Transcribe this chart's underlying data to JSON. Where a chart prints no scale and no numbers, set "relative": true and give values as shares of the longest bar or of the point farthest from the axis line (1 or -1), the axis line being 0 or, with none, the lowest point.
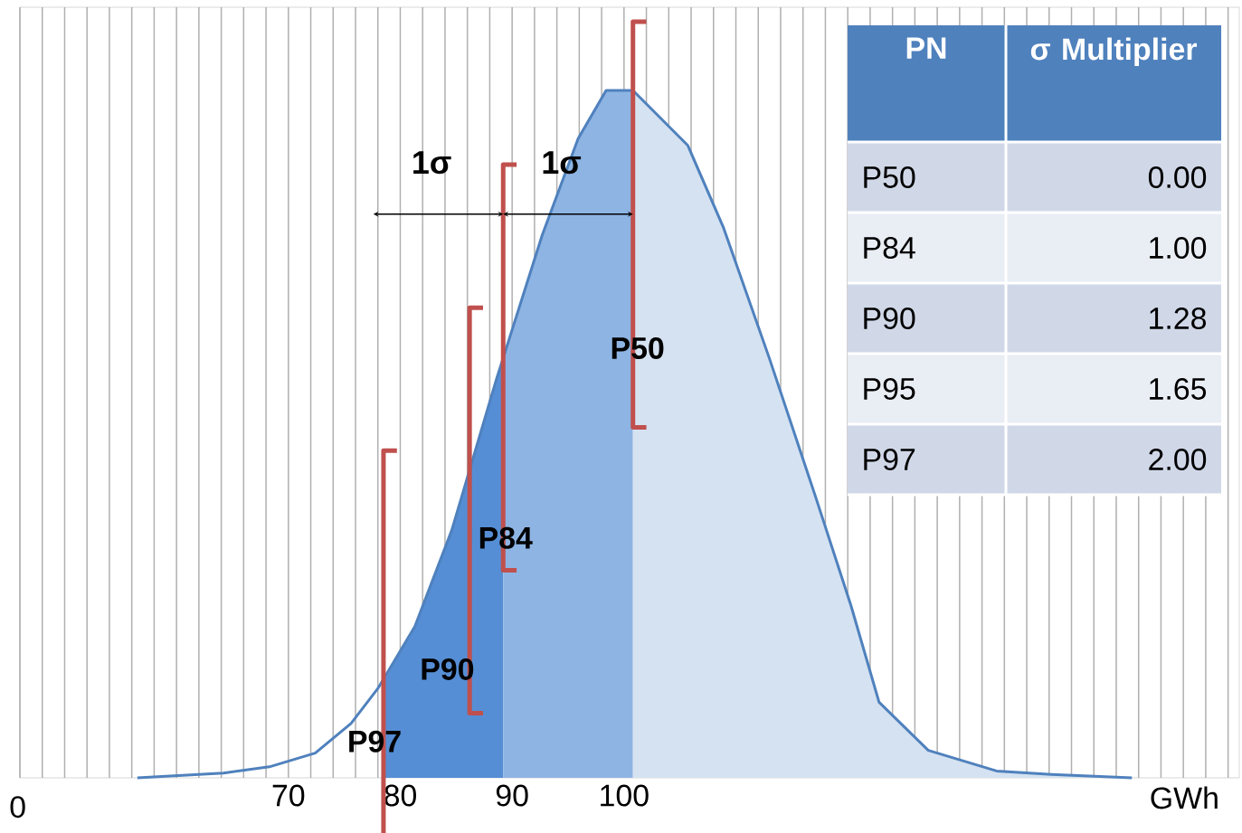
{
  "chart_data": [
    {
      "type": "area",
      "relative": true,
      "xlabel": "GWh",
      "xlim": [
        46,
        155
      ],
      "grid": "x",
      "marker": "none",
      "xticks": [
        {
          "value": 46,
          "label": null
        },
        {
          "value": 48,
          "label": null
        },
        {
          "value": 50,
          "label": null
        },
        {
          "value": 52,
          "label": null
        },
        {
          "value": 54,
          "label": null
        },
        {
          "value": 56,
          "label": null
        },
        {
          "value": 58,
          "label": null
        },
        {
          "value": 60,
          "label": null
        },
        {
          "value": 62,
          "label": null
        },
        {
          "value": 64,
          "label": null
        },
        {
          "value": 66,
          "label": null
        },
        {
          "value": 68,
          "label": null
        },
        70,
        {
          "value": 72,
          "label": null
        },
        {
          "value": 74,
          "label": null
        },
        {
          "value": 76,
          "label": null
        },
        {
          "value": 78,
          "label": null
        },
        80,
        {
          "value": 82,
          "label": null
        },
        {
          "value": 84,
          "label": null
        },
        {
          "value": 86,
          "label": null
        },
        {
          "value": 88,
          "label": null
        },
        90,
        {
          "value": 92,
          "label": null
        },
        {
          "value": 94,
          "label": null
        },
        {
          "value": 96,
          "label": null
        },
        {
          "value": 98,
          "label": null
        },
        100,
        {
          "value": 102,
          "label": null
        },
        {
          "value": 104,
          "label": null
        },
        {
          "value": 106,
          "label": null
        },
        {
          "value": 108,
          "label": null
        },
        {
          "value": 110,
          "label": null
        },
        {
          "value": 112,
          "label": null
        },
        {
          "value": 114,
          "label": null
        },
        {
          "value": 116,
          "label": null
        },
        {
          "value": 118,
          "label": null
        },
        {
          "value": 120,
          "label": null
        },
        {
          "value": 122,
          "label": null
        },
        {
          "value": 124,
          "label": null
        },
        {
          "value": 126,
          "label": null
        },
        {
          "value": 128,
          "label": null
        },
        {
          "value": 130,
          "label": null
        },
        {
          "value": 132,
          "label": null
        },
        {
          "value": 134,
          "label": null
        },
        {
          "value": 136,
          "label": null
        },
        {
          "value": 138,
          "label": null
        },
        {
          "value": 140,
          "label": null
        },
        {
          "value": 142,
          "label": null
        },
        {
          "value": 144,
          "label": null
        },
        {
          "value": 146,
          "label": null
        },
        {
          "value": 148,
          "label": null
        },
        {
          "value": 150,
          "label": null
        },
        {
          "value": 152,
          "label": null
        },
        {
          "value": 154,
          "label": null
        }
      ],
      "series": [
        {
          "color": "#558ed5",
          "x": [
            78.5,
            81.3,
            84.6,
            88.6,
            89.2
          ],
          "values": [
            0.14,
            0.22,
            0.36,
            0.58,
            0.61
          ]
        },
        {
          "color": "#8eb4e3",
          "x": [
            89.2,
            92.7,
            95.9,
            98.4,
            100.8
          ],
          "values": [
            0.61,
            0.79,
            0.93,
            1.0,
            1.0
          ]
        },
        {
          "color": "#d5e2f1",
          "x": [
            100.8,
            105.7,
            108.9,
            113.0,
            117.1,
            120.3,
            122.8,
            127.2,
            133.3,
            138.2,
            145.4
          ],
          "values": [
            1.0,
            0.92,
            0.8,
            0.61,
            0.41,
            0.25,
            0.11,
            0.04,
            0.01,
            0.005,
            0
          ]
        },
        {
          "type": "line",
          "color": "#4f81bd",
          "x": [
            56.5,
            64.2,
            68.3,
            72.4,
            75.6,
            78.0,
            81.3,
            84.6,
            88.6,
            92.7,
            95.9,
            98.4,
            100.8,
            105.7,
            108.9,
            113.0,
            117.1,
            120.3,
            122.8,
            127.2,
            133.3,
            138.2,
            145.4
          ],
          "values": [
            0,
            0.007,
            0.016,
            0.036,
            0.079,
            0.13,
            0.22,
            0.36,
            0.58,
            0.79,
            0.93,
            1.0,
            1.0,
            0.92,
            0.8,
            0.61,
            0.41,
            0.25,
            0.11,
            0.04,
            0.01,
            0.005,
            0
          ]
        }
      ],
      "ref_lines": [
        {
          "axis": "x",
          "value": 100.8,
          "label": "P50",
          "color": "#c0504d"
        },
        {
          "axis": "x",
          "value": 89.2,
          "label": "P84",
          "color": "#c0504d"
        },
        {
          "axis": "x",
          "value": 86.2,
          "label": "P90",
          "color": "#c0504d"
        },
        {
          "axis": "x",
          "value": 78.5,
          "label": "P97",
          "color": "#c0504d"
        }
      ],
      "annotations": [
        "0",
        "1σ",
        "1σ"
      ]
    },
    {
      "type": "other",
      "xlabel": "PN",
      "ylabel": "σ Multiplier",
      "categories": [
        "P50",
        "P84",
        "P90",
        "P95",
        "P97"
      ],
      "value_labels": [
        "0.00",
        "1.00",
        "1.28",
        "1.65",
        "2.00"
      ]
    }
  ]
}
